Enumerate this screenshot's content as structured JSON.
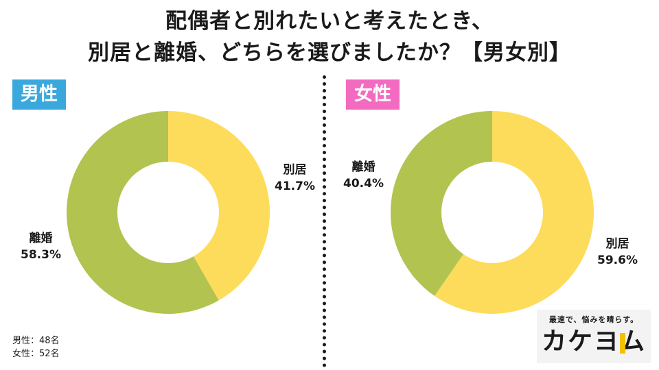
{
  "title": {
    "line1": "配偶者と別れたいと考えたとき、",
    "line2": "別居と離婚、どちらを選びましたか？【男女別】"
  },
  "colors": {
    "separation": "#fddc5c",
    "divorce": "#b2c34f",
    "male_badge": "#3aa8dd",
    "female_badge": "#f36bc0"
  },
  "chart_data": [
    {
      "type": "pie",
      "donut": true,
      "title": "男性",
      "slices": [
        {
          "label": "別居",
          "value": 41.7,
          "display": "41.7%",
          "color": "#fddc5c"
        },
        {
          "label": "離婚",
          "value": 58.3,
          "display": "58.3%",
          "color": "#b2c34f"
        }
      ],
      "start": "12 o'clock",
      "direction": "clockwise"
    },
    {
      "type": "pie",
      "donut": true,
      "title": "女性",
      "slices": [
        {
          "label": "別居",
          "value": 59.6,
          "display": "59.6%",
          "color": "#fddc5c"
        },
        {
          "label": "離婚",
          "value": 40.4,
          "display": "40.4%",
          "color": "#b2c34f"
        }
      ],
      "start": "12 o'clock",
      "direction": "clockwise"
    }
  ],
  "footnote": {
    "male": "男性：48名",
    "female": "女性：52名"
  },
  "brand": {
    "tagline": "最速で、悩みを晴らす。",
    "name": "カケヨム",
    "accent_color": "#f2c200"
  }
}
